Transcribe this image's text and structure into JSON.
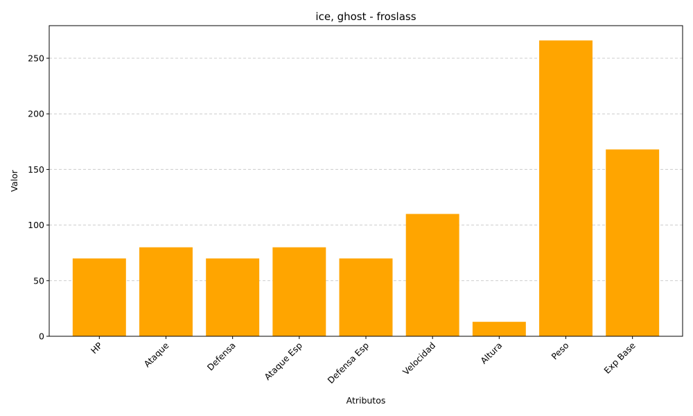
{
  "chart_data": {
    "type": "bar",
    "title": "ice, ghost - froslass",
    "xlabel": "Atributos",
    "ylabel": "Valor",
    "categories": [
      "HP",
      "Ataque",
      "Defensa",
      "Ataque Esp",
      "Defensa Esp",
      "Velocidad",
      "Altura",
      "Peso",
      "Exp Base"
    ],
    "values": [
      70,
      80,
      70,
      80,
      70,
      110,
      13,
      266,
      168
    ],
    "ylim": [
      0,
      279.3
    ],
    "yticks": [
      0,
      50,
      100,
      150,
      200,
      250
    ],
    "grid": "y-dashed",
    "bar_color": "#ffa500",
    "x_tick_rotation": 45
  }
}
